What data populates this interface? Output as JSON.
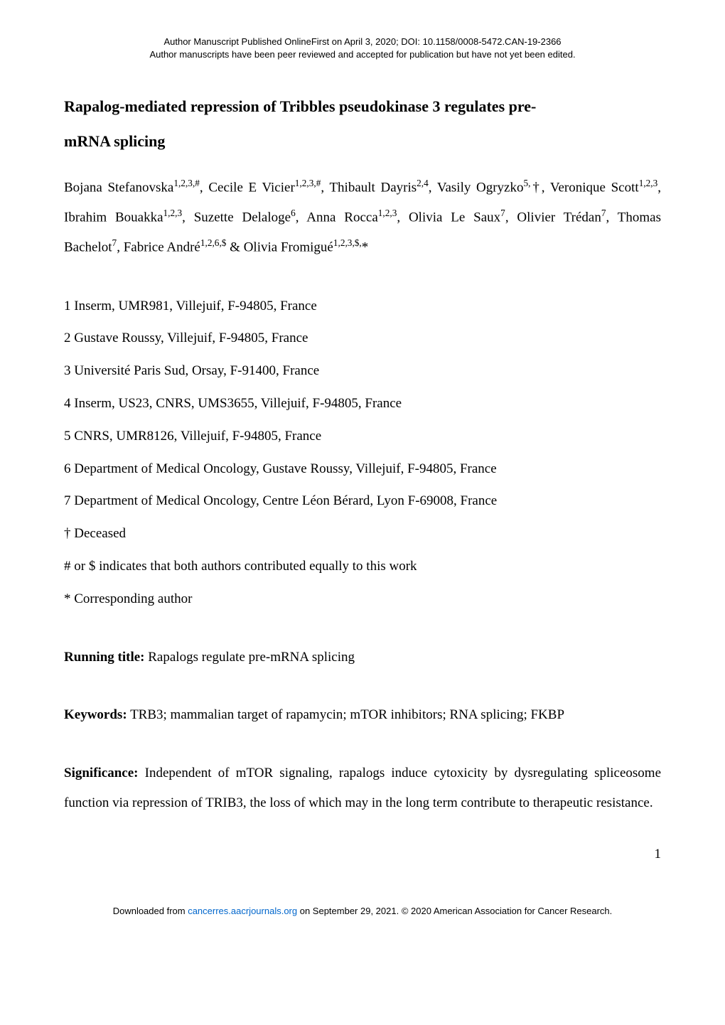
{
  "header": {
    "line1": "Author Manuscript Published OnlineFirst on April 3, 2020; DOI: 10.1158/0008-5472.CAN-19-2366",
    "line2": "Author manuscripts have been peer reviewed and accepted for publication but have not yet been edited."
  },
  "title": {
    "line1": "Rapalog-mediated repression of Tribbles pseudokinase 3 regulates pre-",
    "line2": "mRNA splicing"
  },
  "authors": {
    "a1_name": "Bojana Stefanovska",
    "a1_sup": "1,2,3,#",
    "a2_name": "Cecile E Vicier",
    "a2_sup": "1,2,3,#",
    "a3_name": "Thibault Dayris",
    "a3_sup": "2,4",
    "a4_name": "Vasily Ogryzko",
    "a4_sup": "5,",
    "a4_dagger": "†,",
    "a5_name": "Veronique Scott",
    "a5_sup": "1,2,3",
    "a6_name": "Ibrahim Bouakka",
    "a6_sup": "1,2,3",
    "a7_name": "Suzette Delaloge",
    "a7_sup": "6",
    "a8_name": "Anna Rocca",
    "a8_sup": "1,2,3",
    "a9_name": "Olivia Le Saux",
    "a9_sup": "7",
    "a10_name": "Olivier Trédan",
    "a10_sup": "7",
    "a11_name": "Thomas Bachelot",
    "a11_sup": "7",
    "a12_name": "Fabrice André",
    "a12_sup": "1,2,6,$",
    "a13_name": "Olivia Fromigué",
    "a13_sup": "1,2,3,$,",
    "a13_star": "*"
  },
  "affiliations": {
    "aff1": "1 Inserm, UMR981, Villejuif, F-94805, France",
    "aff2": "2 Gustave Roussy, Villejuif, F-94805, France",
    "aff3": "3 Université Paris Sud, Orsay, F-91400, France",
    "aff4": "4 Inserm, US23, CNRS, UMS3655, Villejuif, F-94805, France",
    "aff5": "5 CNRS, UMR8126, Villejuif, F-94805, France",
    "aff6": "6 Department of Medical Oncology, Gustave Roussy, Villejuif, F-94805, France",
    "aff7": "7 Department of Medical Oncology, Centre Léon Bérard, Lyon F-69008, France",
    "deceased": "† Deceased",
    "contrib": "# or $ indicates that both authors contributed equally to this work",
    "corresponding": "* Corresponding author"
  },
  "running_title": {
    "label": "Running title:",
    "text": " Rapalogs regulate pre-mRNA splicing"
  },
  "keywords": {
    "label": "Keywords:",
    "text": " TRB3; mammalian target of rapamycin; mTOR inhibitors; RNA splicing; FKBP"
  },
  "significance": {
    "label": "Significance:",
    "text": " Independent of mTOR signaling, rapalogs induce cytoxicity by dysregulating spliceosome function via repression of TRIB3, the loss of which may in the long term contribute to therapeutic resistance."
  },
  "page_number": "1",
  "footer": {
    "prefix": "Downloaded from ",
    "link": "cancerres.aacrjournals.org",
    "suffix": " on September 29, 2021. © 2020 American Association for Cancer Research."
  }
}
